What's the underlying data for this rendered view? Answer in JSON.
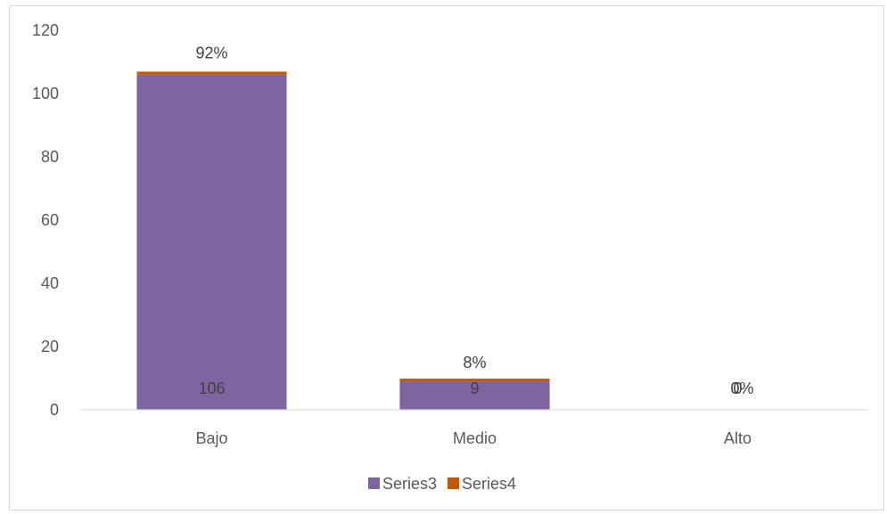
{
  "chart_data": {
    "type": "bar",
    "stacked": true,
    "categories": [
      "Bajo",
      "Medio",
      "Alto"
    ],
    "series": [
      {
        "name": "Series3",
        "values": [
          106,
          9,
          0
        ],
        "color": "#8064a2",
        "labels": [
          "106",
          "9",
          "0"
        ]
      },
      {
        "name": "Series4",
        "values": [
          0.92,
          0.08,
          0
        ],
        "color": "#c0590a",
        "labels": [
          "92%",
          "8%",
          "0%"
        ]
      }
    ],
    "ylim": [
      0,
      120
    ],
    "yticks": [
      0,
      20,
      40,
      60,
      80,
      100,
      120
    ],
    "grid": false,
    "legend": "bottom"
  }
}
